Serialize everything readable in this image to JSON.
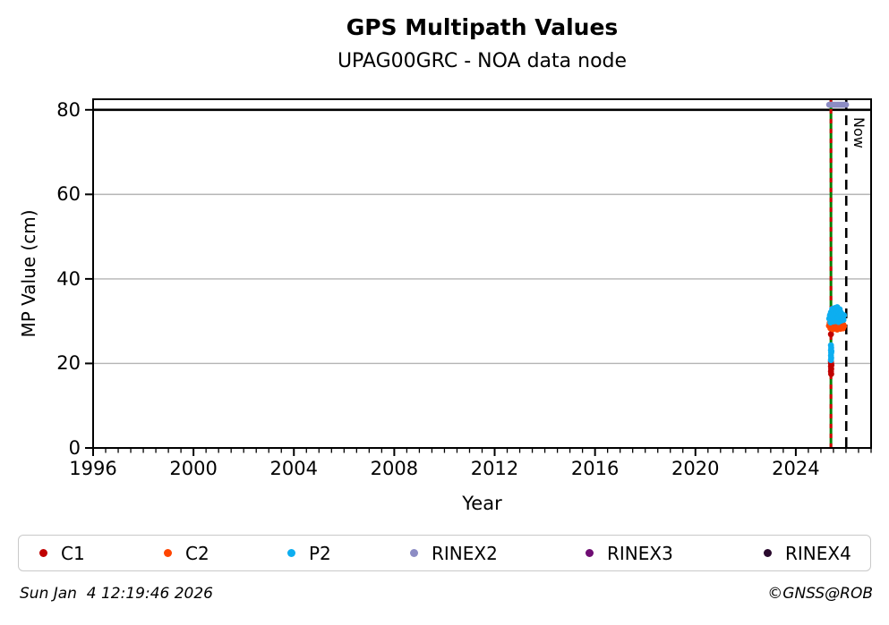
{
  "chart_data": {
    "type": "scatter",
    "title": "GPS Multipath Values",
    "subtitle": "UPAG00GRC - NOA data node",
    "xlabel": "Year",
    "ylabel": "MP Value (cm)",
    "xlim": [
      1996,
      2027
    ],
    "ylim": [
      0,
      82.5
    ],
    "x_major_ticks": [
      1996,
      2000,
      2004,
      2008,
      2012,
      2016,
      2020,
      2024
    ],
    "x_minor_step": 0.5,
    "y_major_ticks": [
      0,
      20,
      40,
      60,
      80
    ],
    "grid": {
      "y_values": [
        20,
        40,
        60
      ],
      "color": "#b4b4b4",
      "vertical": false
    },
    "threshold_line": {
      "y": 80,
      "color": "#000000"
    },
    "event_line": {
      "x": 2025.4,
      "solid_color": "#008000",
      "dash_color": "#d40000"
    },
    "now_line": {
      "x": 2026.01,
      "label": "Now",
      "color": "#000000"
    },
    "legend_position": "bottom",
    "series": [
      {
        "name": "C1",
        "color": "#c00000",
        "points": [
          [
            2025.4,
            26.9
          ],
          [
            2025.4,
            20.5
          ],
          [
            2025.41,
            19.9
          ],
          [
            2025.4,
            19.3
          ],
          [
            2025.41,
            18.7
          ],
          [
            2025.4,
            18.1
          ],
          [
            2025.41,
            17.5
          ],
          [
            2025.42,
            19.6
          ],
          [
            2025.4,
            20.1
          ]
        ]
      },
      {
        "name": "C2",
        "color": "#ff4500",
        "points": [
          [
            2025.32,
            28.9
          ],
          [
            2025.35,
            29.6
          ],
          [
            2025.38,
            28.3
          ],
          [
            2025.4,
            29.2
          ],
          [
            2025.43,
            28.6
          ],
          [
            2025.45,
            29.8
          ],
          [
            2025.48,
            28.1
          ],
          [
            2025.5,
            29.0
          ],
          [
            2025.53,
            28.5
          ],
          [
            2025.55,
            29.5
          ],
          [
            2025.58,
            28.2
          ],
          [
            2025.6,
            29.3
          ],
          [
            2025.63,
            28.8
          ],
          [
            2025.65,
            28.0
          ],
          [
            2025.68,
            29.1
          ],
          [
            2025.7,
            28.4
          ],
          [
            2025.73,
            29.4
          ],
          [
            2025.75,
            28.7
          ],
          [
            2025.78,
            28.2
          ],
          [
            2025.8,
            29.2
          ],
          [
            2025.83,
            28.5
          ],
          [
            2025.85,
            29.0
          ],
          [
            2025.88,
            28.3
          ],
          [
            2025.9,
            29.1
          ],
          [
            2025.92,
            28.8
          ]
        ]
      },
      {
        "name": "P2",
        "color": "#0daef0",
        "points": [
          [
            2025.33,
            30.6
          ],
          [
            2025.36,
            31.4
          ],
          [
            2025.38,
            29.7
          ],
          [
            2025.4,
            30.9
          ],
          [
            2025.4,
            32.1
          ],
          [
            2025.43,
            31.6
          ],
          [
            2025.45,
            30.2
          ],
          [
            2025.45,
            32.9
          ],
          [
            2025.48,
            31.1
          ],
          [
            2025.5,
            29.9
          ],
          [
            2025.5,
            32.4
          ],
          [
            2025.53,
            31.8
          ],
          [
            2025.55,
            30.5
          ],
          [
            2025.55,
            33.1
          ],
          [
            2025.58,
            31.3
          ],
          [
            2025.6,
            30.0
          ],
          [
            2025.6,
            32.6
          ],
          [
            2025.63,
            31.7
          ],
          [
            2025.65,
            30.8
          ],
          [
            2025.65,
            33.3
          ],
          [
            2025.68,
            31.0
          ],
          [
            2025.7,
            32.2
          ],
          [
            2025.7,
            29.8
          ],
          [
            2025.73,
            31.5
          ],
          [
            2025.75,
            30.4
          ],
          [
            2025.75,
            32.8
          ],
          [
            2025.78,
            31.2
          ],
          [
            2025.8,
            30.1
          ],
          [
            2025.8,
            32.0
          ],
          [
            2025.83,
            31.6
          ],
          [
            2025.85,
            30.7
          ],
          [
            2025.88,
            31.1
          ],
          [
            2025.9,
            30.3
          ],
          [
            2025.92,
            31.4
          ],
          [
            2025.4,
            24.3
          ],
          [
            2025.41,
            23.7
          ],
          [
            2025.4,
            23.1
          ],
          [
            2025.41,
            22.5
          ],
          [
            2025.4,
            21.9
          ],
          [
            2025.41,
            21.3
          ],
          [
            2025.42,
            22.9
          ],
          [
            2025.4,
            20.8
          ]
        ]
      },
      {
        "name": "RINEX2",
        "color": "#8c8cc4",
        "points": [
          [
            2025.33,
            81.2
          ],
          [
            2025.37,
            81.2
          ],
          [
            2025.41,
            81.2
          ],
          [
            2025.45,
            81.2
          ],
          [
            2025.49,
            81.2
          ],
          [
            2025.53,
            81.2
          ],
          [
            2025.57,
            81.2
          ],
          [
            2025.61,
            81.2
          ],
          [
            2025.65,
            81.2
          ],
          [
            2025.69,
            81.2
          ],
          [
            2025.73,
            81.2
          ],
          [
            2025.77,
            81.2
          ],
          [
            2025.81,
            81.2
          ],
          [
            2025.85,
            81.2
          ],
          [
            2025.89,
            81.2
          ],
          [
            2025.93,
            81.2
          ],
          [
            2025.97,
            81.2
          ],
          [
            2026.0,
            81.2
          ]
        ]
      },
      {
        "name": "RINEX3",
        "color": "#6f0d73",
        "points": []
      },
      {
        "name": "RINEX4",
        "color": "#2a0a2e",
        "points": []
      }
    ]
  },
  "footer": {
    "timestamp": "Sun Jan  4 12:19:46 2026",
    "credit": "©GNSS@ROB"
  }
}
